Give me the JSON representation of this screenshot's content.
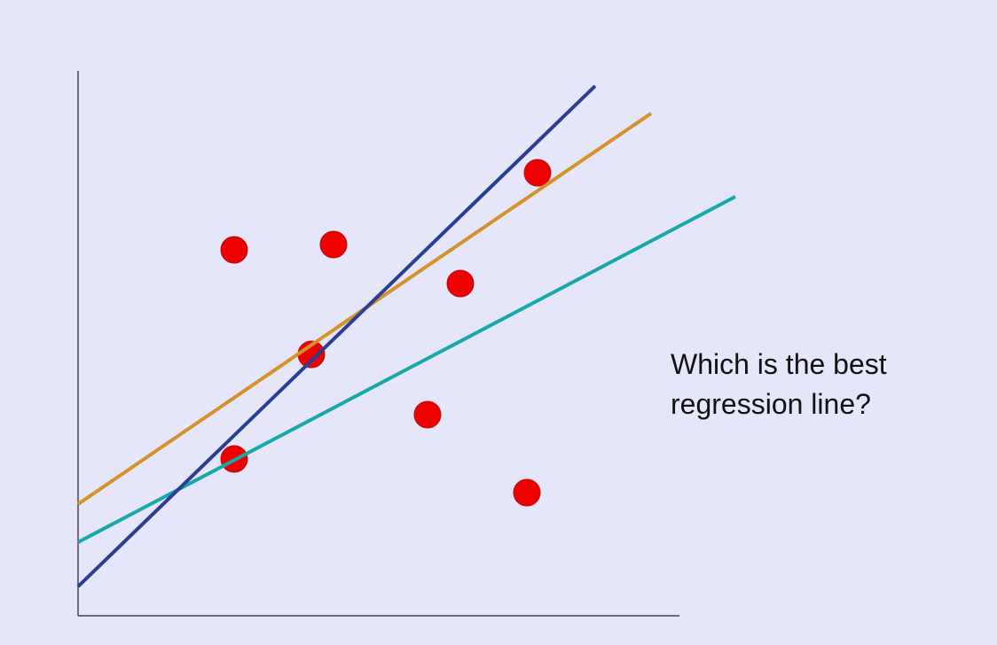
{
  "caption": {
    "lines": [
      "Which is the best",
      "regression line?"
    ]
  }
}
